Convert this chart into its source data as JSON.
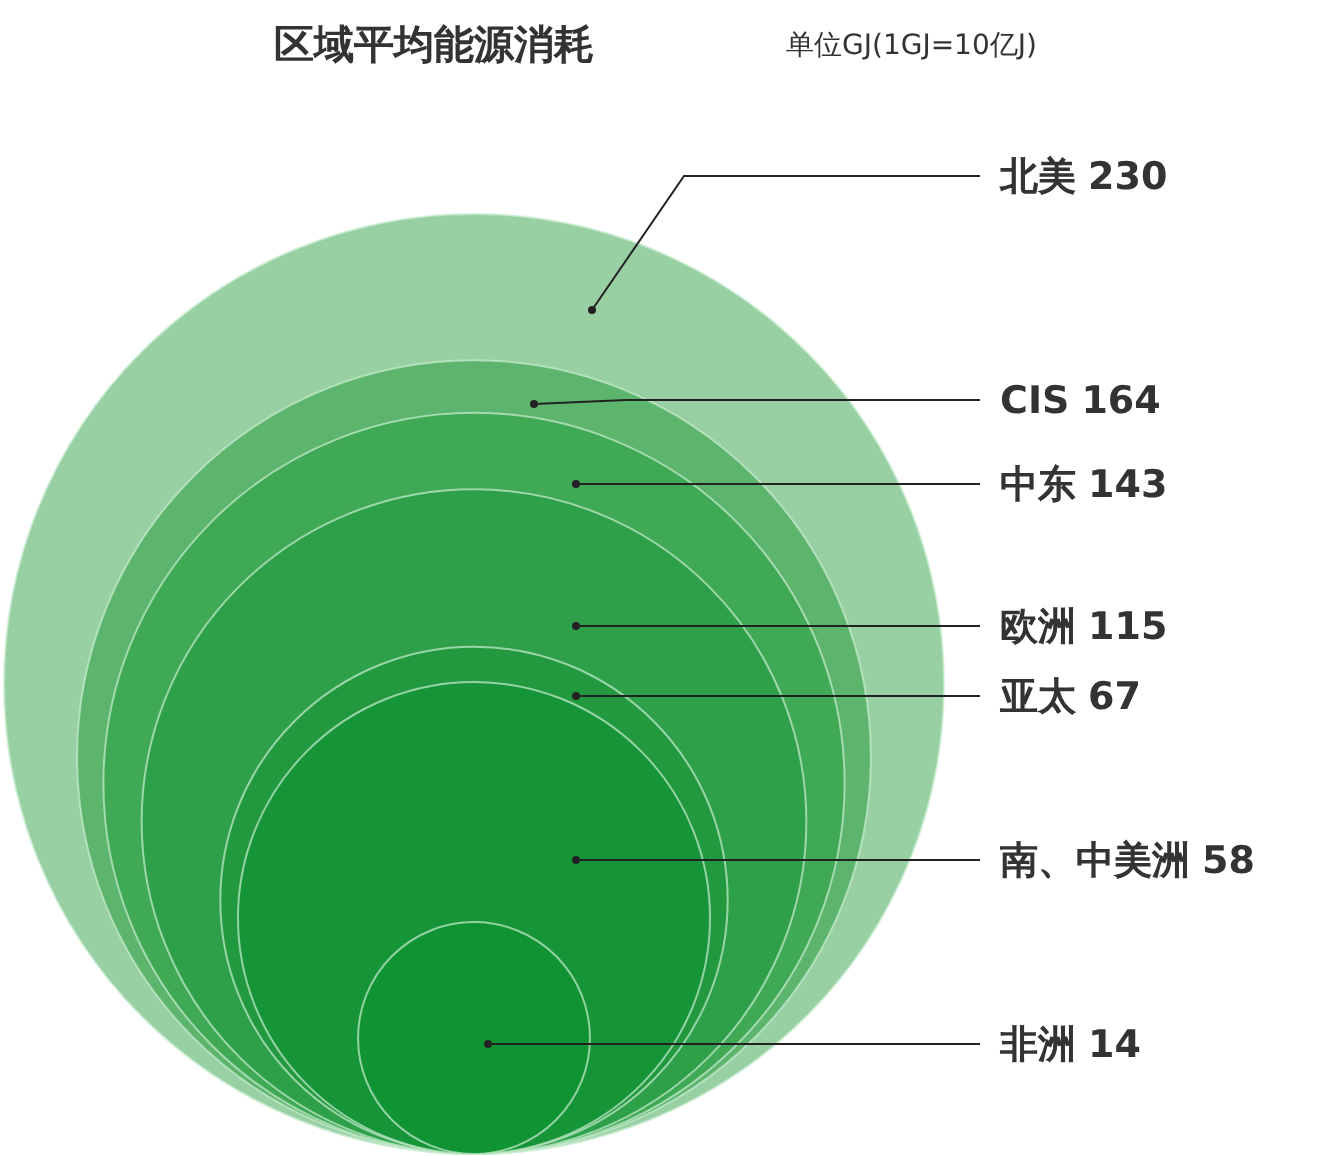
{
  "chart_data": {
    "type": "other",
    "title": "区域平均能源消耗",
    "subtitle": "单位GJ(1GJ=10亿J)",
    "categories": [
      "北美",
      "CIS",
      "中东",
      "欧洲",
      "亚太",
      "南、中美洲",
      "非洲"
    ],
    "values": [
      230,
      164,
      143,
      115,
      67,
      58,
      14
    ],
    "colors": [
      "#98d0a4",
      "#5cb46d",
      "#40a955",
      "#2ea04a",
      "#22993f",
      "#169538",
      "#109332"
    ],
    "data_labels": true
  }
}
